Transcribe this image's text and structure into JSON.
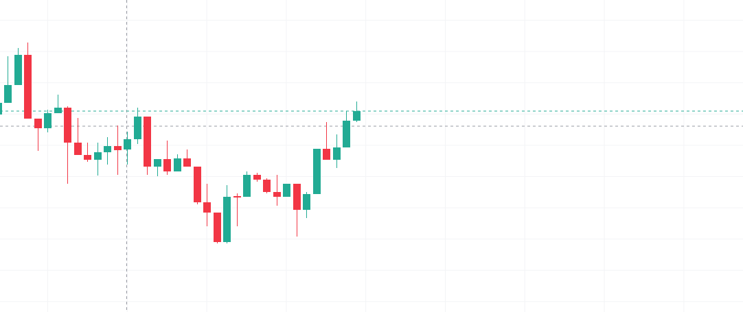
{
  "chart_data": {
    "type": "candlestick",
    "up_color": "#22ab94",
    "down_color": "#f23645",
    "ylim": [
      0,
      455
    ],
    "open": [
      288,
      305,
      331,
      375,
      282,
      268,
      290,
      298,
      247,
      229,
      222,
      233,
      242,
      237,
      252,
      285,
      212,
      223,
      205,
      224,
      212,
      160,
      145,
      102,
      169,
      168,
      200,
      193,
      175,
      168,
      187,
      149,
      172,
      238,
      222,
      240,
      279
    ],
    "high": [
      315,
      373,
      385,
      393,
      282,
      295,
      317,
      300,
      283,
      247,
      247,
      255,
      272,
      263,
      298,
      285,
      223,
      250,
      230,
      237,
      212,
      187,
      145,
      185,
      173,
      205,
      203,
      195,
      200,
      187,
      187,
      175,
      238,
      277,
      259,
      293,
      307
    ],
    "low": [
      285,
      305,
      331,
      282,
      235,
      262,
      290,
      187,
      229,
      219,
      199,
      215,
      200,
      215,
      245,
      200,
      198,
      200,
      205,
      212,
      157,
      125,
      100,
      100,
      125,
      168,
      190,
      173,
      155,
      168,
      110,
      137,
      172,
      222,
      210,
      240,
      277
    ],
    "close": [
      305,
      331,
      375,
      282,
      268,
      290,
      298,
      247,
      229,
      222,
      233,
      242,
      236,
      252,
      285,
      212,
      223,
      205,
      224,
      212,
      160,
      145,
      102,
      168,
      167,
      200,
      193,
      175,
      168,
      187,
      149,
      172,
      238,
      222,
      240,
      279,
      293
    ]
  }
}
